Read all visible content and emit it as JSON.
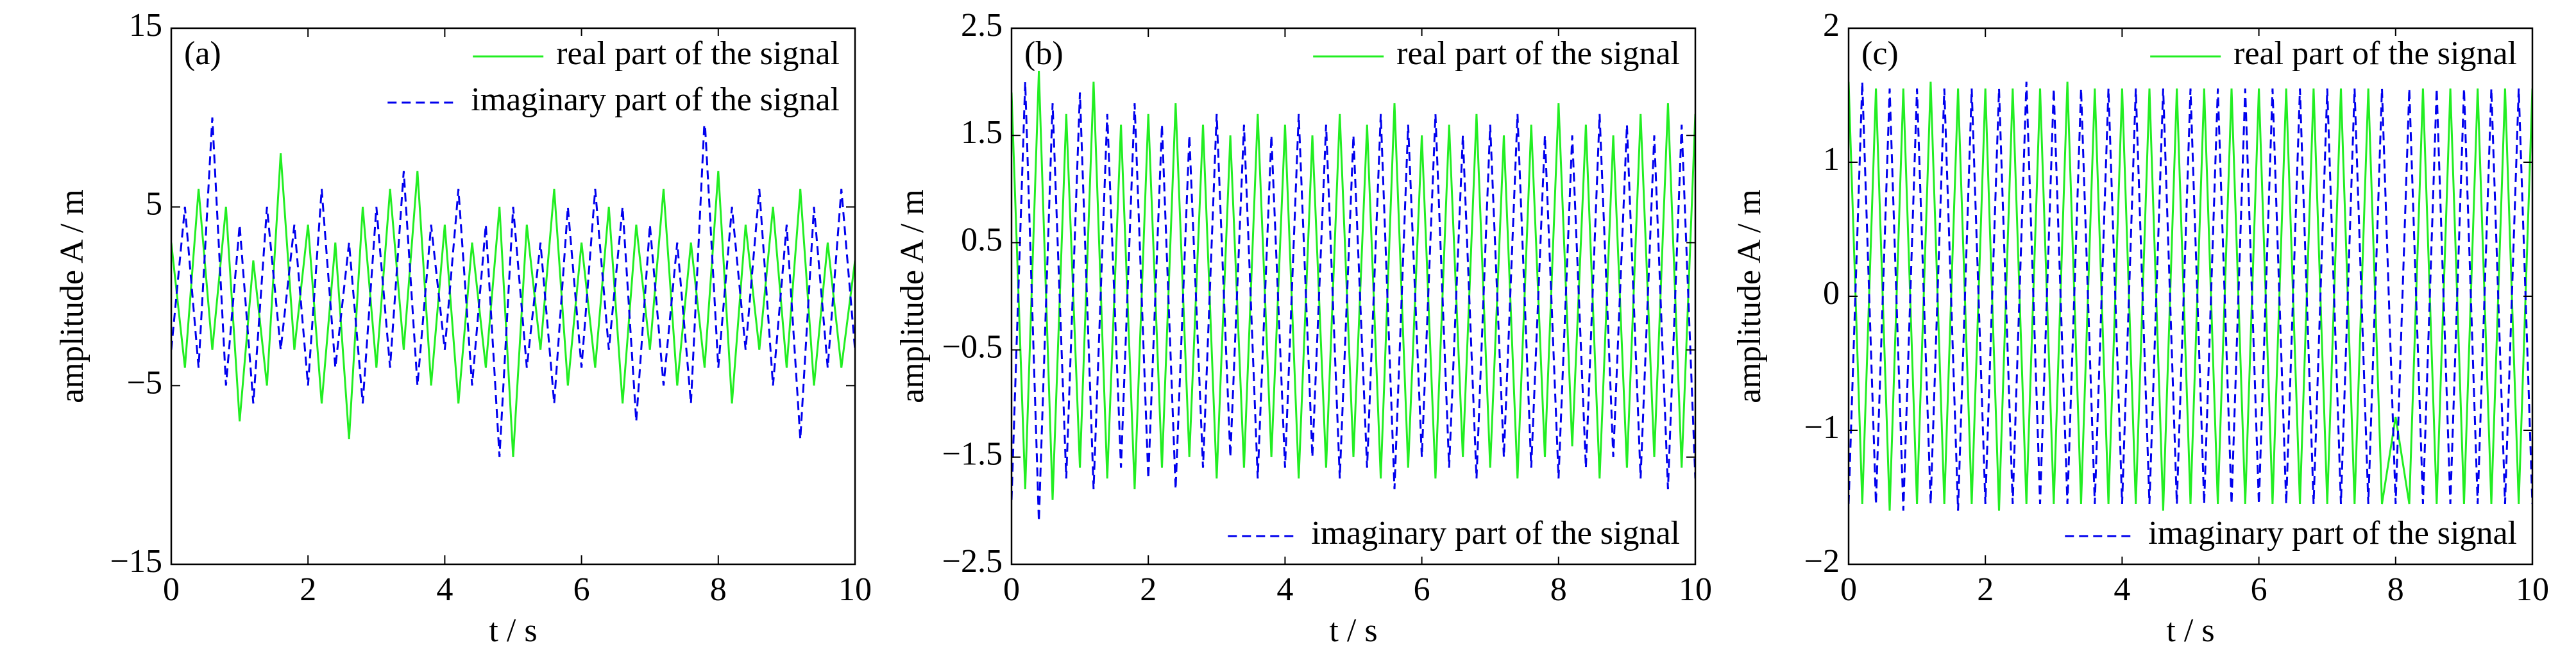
{
  "chart_data": [
    {
      "type": "line",
      "panel": "(a)",
      "xlabel": "t / s",
      "ylabel": "amplitude A / m",
      "xlim": [
        0,
        10
      ],
      "xticks": [
        0,
        2,
        4,
        6,
        8,
        10
      ],
      "ylim": [
        -15,
        15
      ],
      "yticks": [
        {
          "value": -15,
          "label": "−15"
        },
        {
          "value": -5,
          "label": "−5"
        },
        5,
        15
      ],
      "x": [
        0,
        0.2,
        0.4,
        0.6,
        0.8,
        1,
        1.2,
        1.4,
        1.6,
        1.8,
        2,
        2.2,
        2.4,
        2.6,
        2.8,
        3,
        3.2,
        3.4,
        3.6,
        3.8,
        4,
        4.2,
        4.4,
        4.6,
        4.8,
        5,
        5.2,
        5.4,
        5.6,
        5.8,
        6,
        6.2,
        6.4,
        6.6,
        6.8,
        7,
        7.2,
        7.4,
        7.6,
        7.8,
        8,
        8.2,
        8.4,
        8.6,
        8.8,
        9,
        9.2,
        9.4,
        9.6,
        9.8,
        10
      ],
      "series": [
        {
          "name": "real part of the signal",
          "color": "#22ee22",
          "linestyle": "solid",
          "legend": "upper right",
          "values": [
            3,
            -4,
            6,
            -3,
            5,
            -7,
            2,
            -5,
            8,
            -3,
            4,
            -6,
            3,
            -8,
            5,
            -4,
            6,
            -3,
            7,
            -5,
            4,
            -6,
            3,
            -4,
            5,
            -9,
            4,
            -3,
            6,
            -5,
            3,
            -4,
            5,
            -6,
            4,
            -3,
            6,
            -5,
            3,
            -4,
            7,
            -6,
            4,
            -3,
            5,
            -4,
            6,
            -5,
            3,
            -4,
            2
          ]
        },
        {
          "name": "imaginary part of the signal",
          "color": "#0000ee",
          "linestyle": "dashed",
          "legend": "upper right",
          "values": [
            -3,
            5,
            -4,
            10,
            -5,
            4,
            -6,
            5,
            -3,
            4,
            -5,
            6,
            -4,
            3,
            -6,
            5,
            -4,
            7,
            -5,
            4,
            -3,
            6,
            -5,
            4,
            -9,
            5,
            -4,
            3,
            -6,
            5,
            -4,
            6,
            -3,
            5,
            -7,
            4,
            -5,
            3,
            -6,
            10,
            -4,
            5,
            -3,
            6,
            -5,
            4,
            -8,
            5,
            -4,
            6,
            -3
          ]
        }
      ]
    },
    {
      "type": "line",
      "panel": "(b)",
      "xlabel": "t / s",
      "ylabel": "amplitude A / m",
      "xlim": [
        0,
        10
      ],
      "xticks": [
        0,
        2,
        4,
        6,
        8,
        10
      ],
      "ylim": [
        -2.5,
        2.5
      ],
      "yticks": [
        {
          "value": -2.5,
          "label": "−2.5"
        },
        {
          "value": -1.5,
          "label": "−1.5"
        },
        {
          "value": -0.5,
          "label": "−0.5"
        },
        0.5,
        1.5,
        2.5
      ],
      "x": [
        0,
        0.2,
        0.4,
        0.6,
        0.8,
        1,
        1.2,
        1.4,
        1.6,
        1.8,
        2,
        2.2,
        2.4,
        2.6,
        2.8,
        3,
        3.2,
        3.4,
        3.6,
        3.8,
        4,
        4.2,
        4.4,
        4.6,
        4.8,
        5,
        5.2,
        5.4,
        5.6,
        5.8,
        6,
        6.2,
        6.4,
        6.6,
        6.8,
        7,
        7.2,
        7.4,
        7.6,
        7.8,
        8,
        8.2,
        8.4,
        8.6,
        8.8,
        9,
        9.2,
        9.4,
        9.6,
        9.8,
        10
      ],
      "series": [
        {
          "name": "real part of the signal",
          "color": "#22ee22",
          "linestyle": "solid",
          "legend": "upper right",
          "values": [
            1.9,
            -1.8,
            2.1,
            -1.9,
            1.7,
            -1.6,
            2.0,
            -1.7,
            1.6,
            -1.8,
            1.7,
            -1.6,
            1.8,
            -1.5,
            1.6,
            -1.7,
            1.5,
            -1.6,
            1.7,
            -1.5,
            1.6,
            -1.7,
            1.5,
            -1.6,
            1.7,
            -1.5,
            1.6,
            -1.7,
            1.8,
            -1.6,
            1.5,
            -1.7,
            1.6,
            -1.5,
            1.7,
            -1.6,
            1.5,
            -1.7,
            1.6,
            -1.5,
            1.8,
            -1.4,
            1.6,
            -1.7,
            1.5,
            -1.6,
            1.7,
            -1.5,
            1.8,
            -1.6,
            1.7
          ]
        },
        {
          "name": "imaginary part of the signal",
          "color": "#0000ee",
          "linestyle": "dashed",
          "legend": "lower right",
          "values": [
            -1.9,
            2.0,
            -2.1,
            1.8,
            -1.7,
            1.9,
            -1.8,
            1.7,
            -1.6,
            1.8,
            -1.7,
            1.6,
            -1.8,
            1.5,
            -1.6,
            1.7,
            -1.5,
            1.6,
            -1.7,
            1.5,
            -1.6,
            1.7,
            -1.5,
            1.6,
            -1.7,
            1.5,
            -1.6,
            1.7,
            -1.8,
            1.6,
            -1.5,
            1.7,
            -1.6,
            1.5,
            -1.7,
            1.6,
            -1.5,
            1.7,
            -1.6,
            1.5,
            -1.7,
            1.5,
            -1.6,
            1.7,
            -1.5,
            1.6,
            -1.7,
            1.5,
            -1.8,
            1.6,
            -1.7
          ]
        }
      ]
    },
    {
      "type": "line",
      "panel": "(c)",
      "xlabel": "t / s",
      "ylabel": "amplitude A / m",
      "xlim": [
        0,
        10
      ],
      "xticks": [
        0,
        2,
        4,
        6,
        8,
        10
      ],
      "ylim": [
        -2,
        2
      ],
      "yticks": [
        {
          "value": -2,
          "label": "−2"
        },
        {
          "value": -1,
          "label": "−1"
        },
        0,
        1,
        2
      ],
      "x": [
        0,
        0.2,
        0.4,
        0.6,
        0.8,
        1,
        1.2,
        1.4,
        1.6,
        1.8,
        2,
        2.2,
        2.4,
        2.6,
        2.8,
        3,
        3.2,
        3.4,
        3.6,
        3.8,
        4,
        4.2,
        4.4,
        4.6,
        4.8,
        5,
        5.2,
        5.4,
        5.6,
        5.8,
        6,
        6.2,
        6.4,
        6.6,
        6.8,
        7,
        7.2,
        7.4,
        7.6,
        7.8,
        8,
        8.2,
        8.4,
        8.6,
        8.8,
        9,
        9.2,
        9.4,
        9.6,
        9.8,
        10
      ],
      "series": [
        {
          "name": "real part of the signal",
          "color": "#22ee22",
          "linestyle": "solid",
          "legend": "upper right",
          "values": [
            1.6,
            -1.55,
            1.55,
            -1.6,
            1.55,
            -1.55,
            1.6,
            -1.55,
            1.55,
            -1.55,
            1.55,
            -1.6,
            1.55,
            -1.55,
            1.55,
            -1.55,
            1.6,
            -1.55,
            1.55,
            -1.55,
            1.55,
            -1.55,
            1.55,
            -1.6,
            1.55,
            -1.55,
            1.55,
            -1.55,
            1.55,
            -1.55,
            1.55,
            -1.55,
            1.55,
            -1.55,
            1.55,
            -1.55,
            1.55,
            -1.55,
            1.55,
            -1.55,
            -0.9,
            -1.55,
            1.55,
            -1.55,
            1.55,
            -1.55,
            1.55,
            -1.55,
            1.55,
            -1.55,
            1.55
          ]
        },
        {
          "name": "imaginary part of the signal",
          "color": "#0000ee",
          "linestyle": "dashed",
          "legend": "lower right",
          "values": [
            -1.55,
            1.6,
            -1.55,
            1.55,
            -1.6,
            1.55,
            -1.55,
            1.55,
            -1.6,
            1.55,
            -1.55,
            1.55,
            -1.55,
            1.6,
            -1.55,
            1.55,
            -1.55,
            1.55,
            -1.55,
            1.55,
            -1.55,
            1.55,
            -1.55,
            1.55,
            -1.55,
            1.55,
            -1.55,
            1.55,
            -1.55,
            1.55,
            -1.55,
            1.55,
            -1.55,
            1.55,
            -1.55,
            1.55,
            -1.55,
            1.55,
            -1.55,
            1.55,
            -1.55,
            1.55,
            -1.55,
            1.55,
            -1.55,
            1.55,
            -1.55,
            1.55,
            -1.55,
            1.55,
            -1.55
          ]
        }
      ]
    }
  ]
}
